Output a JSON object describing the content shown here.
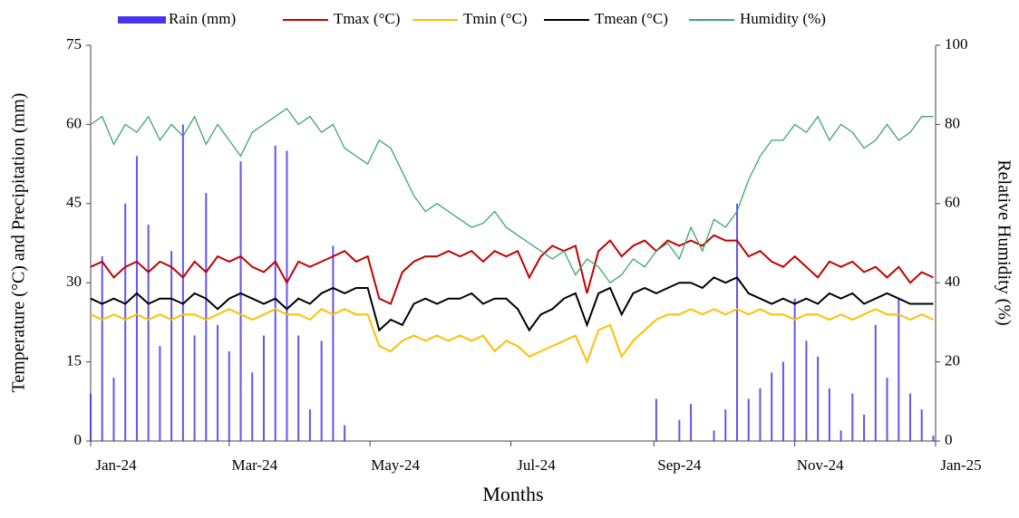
{
  "chart_data": {
    "type": "line",
    "xlabel": "Months",
    "ylabel": "Temperature (°C) and Precipitation (mm)",
    "y2label": "Relative Humidity (%)",
    "xlim": [
      0,
      366
    ],
    "xticks": [
      {
        "value": 0,
        "label": "Jan-24"
      },
      {
        "value": 60,
        "label": "Mar-24"
      },
      {
        "value": 121,
        "label": "May-24"
      },
      {
        "value": 182,
        "label": "Jul-24"
      },
      {
        "value": 244,
        "label": "Sep-24"
      },
      {
        "value": 305,
        "label": "Nov-24"
      },
      {
        "value": 366,
        "label": "Jan-25"
      }
    ],
    "ylim": [
      0,
      75
    ],
    "yticks": [
      0,
      15,
      30,
      45,
      60,
      75
    ],
    "y2lim": [
      0,
      100
    ],
    "y2ticks": [
      0,
      20,
      40,
      60,
      80,
      100
    ],
    "x": [
      0,
      5,
      10,
      15,
      20,
      25,
      30,
      35,
      40,
      45,
      50,
      55,
      60,
      65,
      70,
      75,
      80,
      85,
      90,
      95,
      100,
      105,
      110,
      115,
      120,
      125,
      130,
      135,
      140,
      145,
      150,
      155,
      160,
      165,
      170,
      175,
      180,
      185,
      190,
      195,
      200,
      205,
      210,
      215,
      220,
      225,
      230,
      235,
      240,
      245,
      250,
      255,
      260,
      265,
      270,
      275,
      280,
      285,
      290,
      295,
      300,
      305,
      310,
      315,
      320,
      325,
      330,
      335,
      340,
      345,
      350,
      355,
      360,
      365
    ],
    "series": [
      {
        "name": "Rain (mm)",
        "type": "bar",
        "color": "#4a35ee",
        "values": [
          9,
          35,
          12,
          45,
          54,
          41,
          18,
          36,
          60,
          20,
          47,
          22,
          17,
          53,
          13,
          20,
          56,
          55,
          20,
          6,
          19,
          37,
          3,
          0,
          0,
          0,
          0,
          0,
          0,
          0,
          0,
          0,
          0,
          0,
          0,
          0,
          0,
          0,
          0,
          0,
          0,
          0,
          0,
          0,
          0,
          0,
          0,
          0,
          0,
          8,
          0,
          4,
          7,
          0,
          2,
          6,
          45,
          8,
          10,
          13,
          15,
          27,
          19,
          16,
          10,
          2,
          9,
          5,
          22,
          12,
          27,
          9,
          6,
          1
        ]
      },
      {
        "name": "Tmax (°C)",
        "type": "line",
        "color": "#c00000",
        "values": [
          33,
          34,
          31,
          33,
          34,
          32,
          34,
          33,
          31,
          34,
          32,
          35,
          34,
          35,
          33,
          32,
          34,
          30,
          34,
          33,
          34,
          35,
          36,
          34,
          35,
          27,
          26,
          32,
          34,
          35,
          35,
          36,
          35,
          36,
          34,
          36,
          35,
          36,
          31,
          35,
          37,
          36,
          37,
          28,
          36,
          38,
          35,
          37,
          38,
          36,
          38,
          37,
          38,
          37,
          39,
          38,
          38,
          35,
          36,
          34,
          33,
          35,
          33,
          31,
          34,
          33,
          34,
          32,
          33,
          31,
          33,
          30,
          32,
          31
        ]
      },
      {
        "name": "Tmin (°C)",
        "type": "line",
        "color": "#ffc000",
        "values": [
          24,
          23,
          24,
          23,
          24,
          23,
          24,
          23,
          24,
          24,
          23,
          24,
          25,
          24,
          23,
          24,
          25,
          24,
          24,
          23,
          25,
          24,
          25,
          24,
          24,
          18,
          17,
          19,
          20,
          19,
          20,
          19,
          20,
          19,
          20,
          17,
          19,
          18,
          16,
          17,
          18,
          19,
          20,
          15,
          21,
          22,
          16,
          19,
          21,
          23,
          24,
          24,
          25,
          24,
          25,
          24,
          25,
          24,
          25,
          24,
          24,
          23,
          24,
          24,
          23,
          24,
          23,
          24,
          25,
          24,
          24,
          23,
          24,
          23
        ]
      },
      {
        "name": "Tmean (°C)",
        "type": "line",
        "color": "#000000",
        "values": [
          27,
          26,
          27,
          26,
          28,
          26,
          27,
          27,
          26,
          28,
          27,
          25,
          27,
          28,
          27,
          26,
          27,
          25,
          27,
          26,
          28,
          29,
          28,
          29,
          29,
          21,
          23,
          22,
          26,
          27,
          26,
          27,
          27,
          28,
          26,
          27,
          27,
          25,
          21,
          24,
          25,
          27,
          28,
          22,
          28,
          29,
          24,
          28,
          29,
          28,
          29,
          30,
          30,
          29,
          31,
          30,
          31,
          28,
          27,
          26,
          27,
          26,
          27,
          26,
          28,
          27,
          28,
          26,
          27,
          28,
          27,
          26,
          26,
          26
        ]
      },
      {
        "name": "Humidity (%)",
        "type": "line",
        "axis": "y2",
        "color": "#3aa76d",
        "values": [
          80,
          82,
          75,
          80,
          78,
          82,
          76,
          80,
          77,
          82,
          75,
          80,
          76,
          72,
          78,
          80,
          82,
          84,
          80,
          82,
          78,
          80,
          74,
          72,
          70,
          76,
          74,
          68,
          62,
          58,
          60,
          58,
          56,
          54,
          55,
          58,
          54,
          52,
          50,
          48,
          46,
          48,
          42,
          46,
          44,
          40,
          42,
          46,
          44,
          48,
          50,
          46,
          54,
          48,
          56,
          54,
          58,
          66,
          72,
          76,
          76,
          80,
          78,
          82,
          76,
          80,
          78,
          74,
          76,
          80,
          76,
          78,
          82,
          82
        ]
      }
    ]
  }
}
